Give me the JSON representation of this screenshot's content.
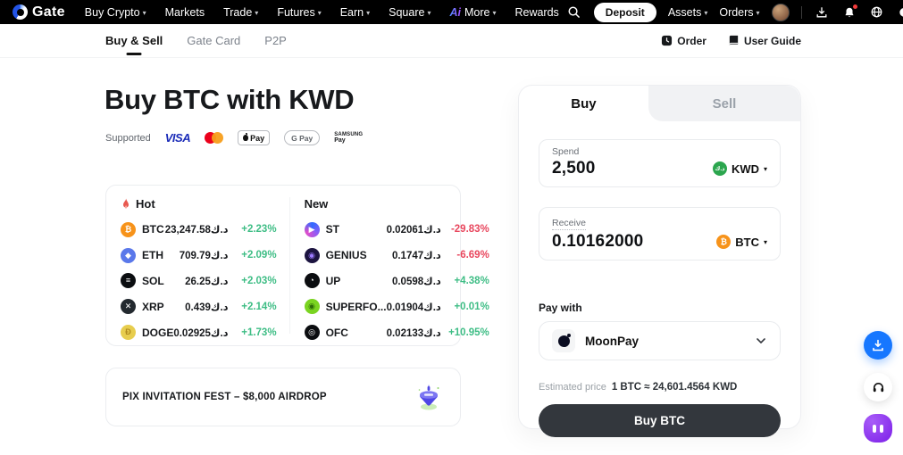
{
  "colors": {
    "up": "#3ebd85",
    "down": "#e8465d",
    "brand_blue": "#1677ff",
    "flame": "#e8584f",
    "button_dark": "#33373d"
  },
  "topnav": {
    "logo": "Gate",
    "items": [
      {
        "label": "Buy Crypto",
        "caret": true
      },
      {
        "label": "Markets",
        "caret": false
      },
      {
        "label": "Trade",
        "caret": true
      },
      {
        "label": "Futures",
        "caret": true
      },
      {
        "label": "Earn",
        "caret": true
      },
      {
        "label": "Square",
        "caret": true
      },
      {
        "label": "More",
        "caret": true,
        "ai": true
      },
      {
        "label": "Rewards",
        "caret": false
      }
    ],
    "ai_badge": "Ai",
    "deposit_label": "Deposit",
    "assets_label": "Assets",
    "orders_label": "Orders"
  },
  "subnav": {
    "tabs": [
      "Buy & Sell",
      "Gate Card",
      "P2P"
    ],
    "order_label": "Order",
    "user_guide_label": "User Guide"
  },
  "hero": {
    "title": "Buy BTC with KWD",
    "supported_label": "Supported",
    "payment": {
      "visa": "VISA",
      "apple": "Pay",
      "gpay": "G Pay",
      "samsung_line1": "SAMSUNG",
      "samsung_line2": "Pay"
    }
  },
  "markets": {
    "hot": {
      "title": "Hot",
      "rows": [
        {
          "symbol": "BTC",
          "price": "23,247.58د.ك",
          "change": "+2.23%",
          "dir": "up",
          "icon": {
            "bg": "#f7931a",
            "fg": "#fff",
            "glyph": "₿"
          }
        },
        {
          "symbol": "ETH",
          "price": "709.79د.ك",
          "change": "+2.09%",
          "dir": "up",
          "icon": {
            "bg": "#5a78ea",
            "fg": "#fff",
            "glyph": "◆"
          }
        },
        {
          "symbol": "SOL",
          "price": "26.25د.ك",
          "change": "+2.03%",
          "dir": "up",
          "icon": {
            "bg": "#0b0d10",
            "fg": "#fff",
            "glyph": "≡"
          }
        },
        {
          "symbol": "XRP",
          "price": "0.439د.ك",
          "change": "+2.14%",
          "dir": "up",
          "icon": {
            "bg": "#23292f",
            "fg": "#fff",
            "glyph": "✕"
          }
        },
        {
          "symbol": "DOGE",
          "price": "0.02925د.ك",
          "change": "+1.73%",
          "dir": "up",
          "icon": {
            "bg": "#e7cd4e",
            "fg": "#b08a1e",
            "glyph": "Ð"
          }
        }
      ]
    },
    "new": {
      "title": "New",
      "rows": [
        {
          "symbol": "ST",
          "price": "0.02061د.ك",
          "change": "-29.83%",
          "dir": "down",
          "icon": {
            "bg": "conic-gradient(#2f6bff,#8b5cf6,#e14eca,#2f6bff)",
            "fg": "#fff",
            "glyph": "▶"
          }
        },
        {
          "symbol": "GENIUS",
          "price": "0.1747د.ك",
          "change": "-6.69%",
          "dir": "down",
          "icon": {
            "bg": "#1c1440",
            "fg": "#9d7bff",
            "glyph": "◉"
          }
        },
        {
          "symbol": "UP",
          "price": "0.0598د.ك",
          "change": "+4.38%",
          "dir": "up",
          "icon": {
            "bg": "#0b0d10",
            "fg": "#fff",
            "glyph": "◔"
          }
        },
        {
          "symbol": "SUPERFO...",
          "price": "0.01904د.ك",
          "change": "+0.01%",
          "dir": "up",
          "icon": {
            "bg": "#7ad421",
            "fg": "#2c6b07",
            "glyph": "◉"
          }
        },
        {
          "symbol": "OFC",
          "price": "0.02133د.ك",
          "change": "+10.95%",
          "dir": "up",
          "icon": {
            "bg": "#0b0d10",
            "fg": "#fff",
            "glyph": "◎"
          }
        }
      ]
    }
  },
  "banner": {
    "text": "PIX INVITATION FEST – $8,000 AIRDROP"
  },
  "widget": {
    "tab_buy": "Buy",
    "tab_sell": "Sell",
    "spend": {
      "label": "Spend",
      "value": "2,500",
      "currency": "KWD",
      "coin_color": "#2ba64e",
      "coin_glyph": "د.ك"
    },
    "receive": {
      "label": "Receive",
      "value": "0.10162000",
      "currency": "BTC",
      "coin_color": "#f7931a",
      "coin_glyph": "₿"
    },
    "pay_with": {
      "label": "Pay with",
      "provider": "MoonPay"
    },
    "est_label": "Estimated price",
    "est_value": "1 BTC ≈ 24,601.4564 KWD",
    "submit_label": "Buy BTC"
  }
}
